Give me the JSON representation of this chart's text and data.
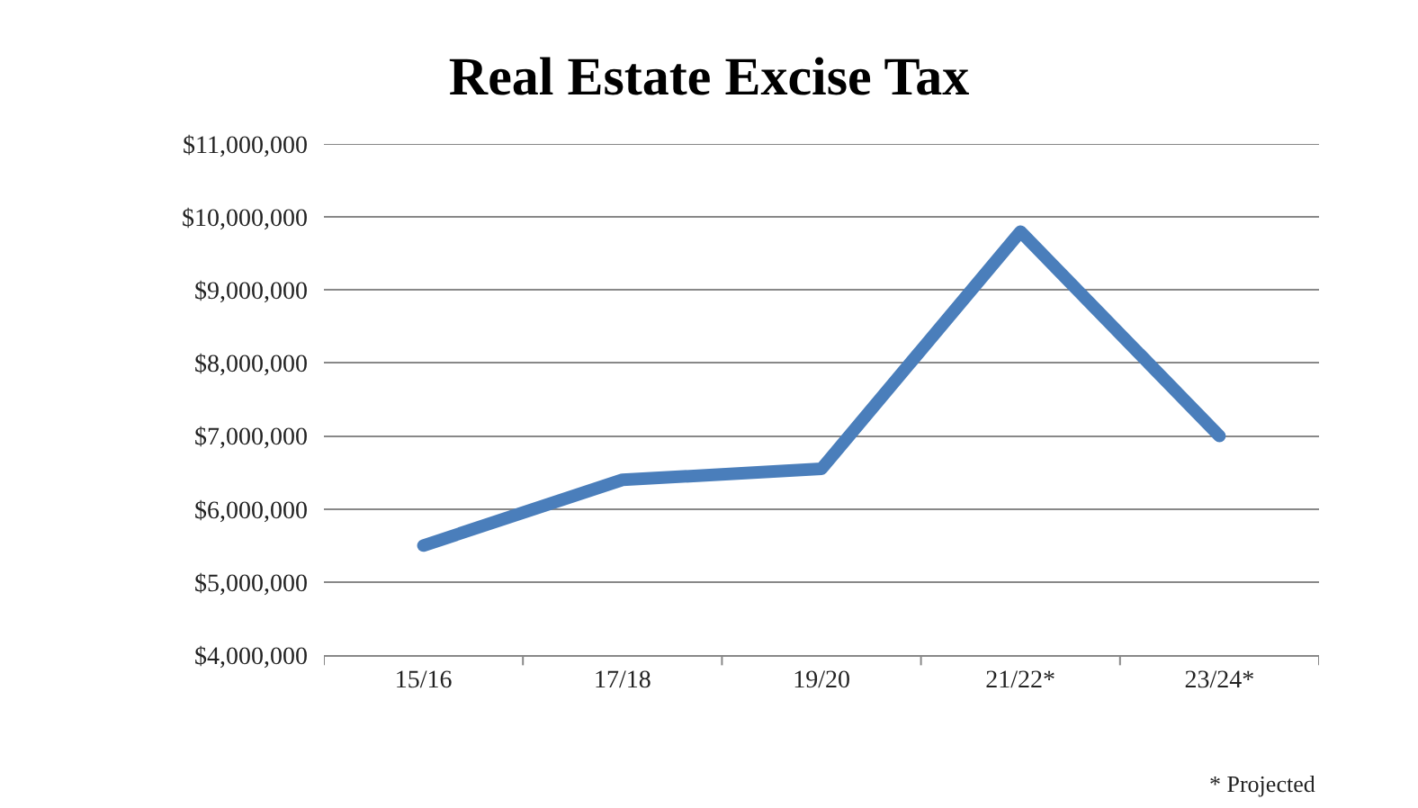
{
  "chart_data": {
    "type": "line",
    "title": "Real Estate Excise Tax",
    "categories": [
      "15/16",
      "17/18",
      "19/20",
      "21/22*",
      "23/24*"
    ],
    "series": [
      {
        "color": "#4a7ebb",
        "values": [
          5500000,
          6400000,
          6550000,
          9800000,
          7000000
        ]
      }
    ],
    "ylim": [
      4000000,
      11000000
    ],
    "yticks": [
      {
        "value": 4000000,
        "label": "$4,000,000"
      },
      {
        "value": 5000000,
        "label": "$5,000,000"
      },
      {
        "value": 6000000,
        "label": "$6,000,000"
      },
      {
        "value": 7000000,
        "label": "$7,000,000"
      },
      {
        "value": 8000000,
        "label": "$8,000,000"
      },
      {
        "value": 9000000,
        "label": "$9,000,000"
      },
      {
        "value": 10000000,
        "label": "$10,000,000"
      },
      {
        "value": 11000000,
        "label": "$11,000,000"
      }
    ],
    "grid": "y",
    "line_style": "solid",
    "annotations": [
      "* Projected"
    ]
  }
}
